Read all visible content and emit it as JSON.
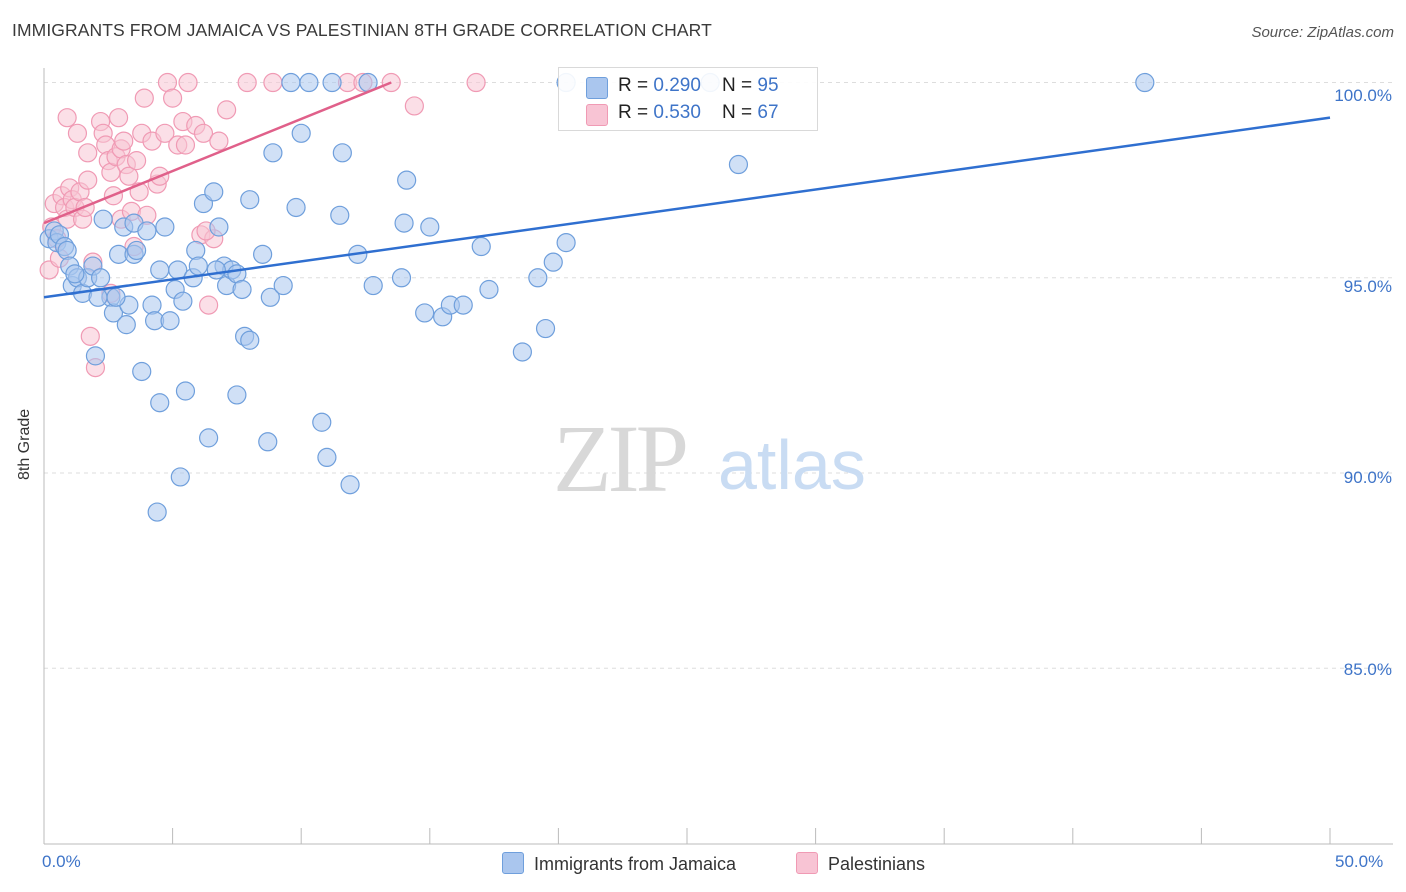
{
  "title": "IMMIGRANTS FROM JAMAICA VS PALESTINIAN 8TH GRADE CORRELATION CHART",
  "source": "Source: ZipAtlas.com",
  "watermark": {
    "zip": "ZIP",
    "atlas": "atlas"
  },
  "colors": {
    "blue": "#6f9fdc",
    "blue_fill": "#aac6ee",
    "blue_line": "#2f6fd0",
    "pink": "#f09ab4",
    "pink_fill": "#f8c4d4",
    "pink_line": "#e0608a",
    "tick_text": "#3e74c8"
  },
  "legend": {
    "series1": {
      "r_label": "R = ",
      "r_value": "0.290",
      "n_label": "N = ",
      "n_value": "95"
    },
    "series2": {
      "r_label": "R = ",
      "r_value": "0.530",
      "n_label": "N = ",
      "n_value": "67"
    }
  },
  "bottom_legend": {
    "series1": "Immigrants from Jamaica",
    "series2": "Palestinians"
  },
  "chart_data": {
    "type": "scatter",
    "title": "IMMIGRANTS FROM JAMAICA VS PALESTINIAN 8TH GRADE CORRELATION CHART",
    "xlabel": "",
    "ylabel": "8th Grade",
    "xlim": [
      0,
      50
    ],
    "ylim": [
      80.5,
      100.5
    ],
    "x_tick_labels": {
      "left": "0.0%",
      "right": "50.0%"
    },
    "y_ticks": [
      {
        "value": 100,
        "label": "100.0%"
      },
      {
        "value": 95,
        "label": "95.0%"
      },
      {
        "value": 90,
        "label": "90.0%"
      },
      {
        "value": 85,
        "label": "85.0%"
      }
    ],
    "series": [
      {
        "name": "Immigrants from Jamaica",
        "r": 0.29,
        "n": 95,
        "trend": {
          "x": [
            0,
            50
          ],
          "y": [
            94.5,
            99.1
          ]
        },
        "points": [
          [
            0.2,
            96.0
          ],
          [
            0.4,
            96.2
          ],
          [
            0.5,
            95.9
          ],
          [
            0.6,
            96.1
          ],
          [
            0.8,
            95.8
          ],
          [
            0.9,
            95.7
          ],
          [
            1.0,
            95.3
          ],
          [
            1.1,
            94.8
          ],
          [
            1.3,
            95.0
          ],
          [
            1.5,
            94.6
          ],
          [
            1.7,
            95.0
          ],
          [
            1.9,
            95.3
          ],
          [
            2.2,
            95.0
          ],
          [
            2.0,
            93.0
          ],
          [
            2.3,
            96.5
          ],
          [
            2.6,
            94.5
          ],
          [
            2.7,
            94.1
          ],
          [
            2.9,
            95.6
          ],
          [
            3.1,
            96.3
          ],
          [
            3.2,
            93.8
          ],
          [
            3.3,
            94.3
          ],
          [
            3.5,
            96.4
          ],
          [
            3.5,
            95.6
          ],
          [
            3.6,
            95.7
          ],
          [
            3.8,
            92.6
          ],
          [
            4.0,
            96.2
          ],
          [
            4.2,
            94.3
          ],
          [
            4.3,
            93.9
          ],
          [
            4.5,
            95.2
          ],
          [
            4.5,
            91.8
          ],
          [
            4.7,
            96.3
          ],
          [
            4.9,
            93.9
          ],
          [
            5.1,
            94.7
          ],
          [
            5.2,
            95.2
          ],
          [
            5.3,
            89.9
          ],
          [
            5.4,
            94.4
          ],
          [
            5.5,
            92.1
          ],
          [
            5.8,
            95.0
          ],
          [
            5.9,
            95.7
          ],
          [
            6.0,
            95.3
          ],
          [
            6.2,
            96.9
          ],
          [
            6.4,
            90.9
          ],
          [
            6.6,
            97.2
          ],
          [
            6.8,
            96.3
          ],
          [
            7.0,
            95.3
          ],
          [
            7.1,
            94.8
          ],
          [
            7.3,
            95.2
          ],
          [
            7.5,
            95.1
          ],
          [
            7.5,
            92.0
          ],
          [
            7.7,
            94.7
          ],
          [
            7.8,
            93.5
          ],
          [
            8.0,
            93.4
          ],
          [
            8.0,
            97.0
          ],
          [
            8.5,
            95.6
          ],
          [
            8.7,
            90.8
          ],
          [
            8.8,
            94.5
          ],
          [
            8.9,
            98.2
          ],
          [
            9.3,
            94.8
          ],
          [
            9.6,
            100.0
          ],
          [
            9.8,
            96.8
          ],
          [
            10.0,
            98.7
          ],
          [
            10.3,
            100.0
          ],
          [
            10.8,
            91.3
          ],
          [
            11.0,
            90.4
          ],
          [
            11.2,
            100.0
          ],
          [
            11.5,
            96.6
          ],
          [
            11.6,
            98.2
          ],
          [
            11.9,
            89.7
          ],
          [
            12.2,
            95.6
          ],
          [
            12.6,
            100.0
          ],
          [
            12.8,
            94.8
          ],
          [
            13.9,
            95.0
          ],
          [
            14.0,
            96.4
          ],
          [
            14.1,
            97.5
          ],
          [
            14.8,
            94.1
          ],
          [
            15.0,
            96.3
          ],
          [
            15.5,
            94.0
          ],
          [
            15.8,
            94.3
          ],
          [
            16.3,
            94.3
          ],
          [
            17.0,
            95.8
          ],
          [
            17.3,
            94.7
          ],
          [
            18.6,
            93.1
          ],
          [
            19.2,
            95.0
          ],
          [
            19.5,
            93.7
          ],
          [
            19.8,
            95.4
          ],
          [
            20.3,
            95.9
          ],
          [
            20.3,
            100.0
          ],
          [
            25.9,
            100.0
          ],
          [
            27.0,
            97.9
          ],
          [
            42.8,
            100.0
          ],
          [
            2.1,
            94.5
          ],
          [
            4.4,
            89.0
          ],
          [
            1.2,
            95.1
          ],
          [
            2.8,
            94.5
          ],
          [
            6.7,
            95.2
          ]
        ]
      },
      {
        "name": "Palestinians",
        "r": 0.53,
        "n": 67,
        "trend": {
          "x": [
            0,
            13.5
          ],
          "y": [
            96.4,
            100.0
          ]
        },
        "points": [
          [
            0.2,
            95.2
          ],
          [
            0.3,
            96.3
          ],
          [
            0.4,
            96.9
          ],
          [
            0.5,
            96.0
          ],
          [
            0.6,
            95.5
          ],
          [
            0.7,
            97.1
          ],
          [
            0.8,
            96.8
          ],
          [
            0.9,
            96.5
          ],
          [
            1.0,
            97.3
          ],
          [
            1.1,
            97.0
          ],
          [
            1.2,
            96.8
          ],
          [
            1.3,
            98.7
          ],
          [
            1.4,
            97.2
          ],
          [
            1.5,
            96.5
          ],
          [
            1.6,
            96.8
          ],
          [
            1.7,
            97.5
          ],
          [
            1.7,
            98.2
          ],
          [
            1.8,
            93.5
          ],
          [
            1.9,
            95.4
          ],
          [
            2.0,
            92.7
          ],
          [
            2.2,
            99.0
          ],
          [
            2.3,
            98.7
          ],
          [
            2.4,
            98.4
          ],
          [
            2.5,
            98.0
          ],
          [
            2.6,
            97.7
          ],
          [
            2.7,
            97.1
          ],
          [
            2.8,
            98.1
          ],
          [
            2.9,
            99.1
          ],
          [
            3.0,
            98.3
          ],
          [
            3.0,
            96.5
          ],
          [
            3.1,
            98.5
          ],
          [
            3.2,
            97.9
          ],
          [
            3.3,
            97.6
          ],
          [
            3.4,
            96.7
          ],
          [
            3.5,
            95.8
          ],
          [
            3.6,
            98.0
          ],
          [
            3.7,
            97.2
          ],
          [
            3.8,
            98.7
          ],
          [
            3.9,
            99.6
          ],
          [
            4.0,
            96.6
          ],
          [
            4.2,
            98.5
          ],
          [
            4.4,
            97.4
          ],
          [
            4.5,
            97.6
          ],
          [
            4.7,
            98.7
          ],
          [
            4.8,
            100.0
          ],
          [
            5.0,
            99.6
          ],
          [
            5.2,
            98.4
          ],
          [
            5.4,
            99.0
          ],
          [
            5.5,
            98.4
          ],
          [
            5.6,
            100.0
          ],
          [
            5.9,
            98.9
          ],
          [
            6.1,
            96.1
          ],
          [
            6.2,
            98.7
          ],
          [
            6.4,
            94.3
          ],
          [
            6.6,
            96.0
          ],
          [
            6.8,
            98.5
          ],
          [
            7.1,
            99.3
          ],
          [
            7.9,
            100.0
          ],
          [
            8.9,
            100.0
          ],
          [
            11.8,
            100.0
          ],
          [
            12.4,
            100.0
          ],
          [
            13.5,
            100.0
          ],
          [
            14.4,
            99.4
          ],
          [
            16.8,
            100.0
          ],
          [
            0.9,
            99.1
          ],
          [
            2.6,
            94.6
          ],
          [
            6.3,
            96.2
          ]
        ]
      }
    ]
  }
}
